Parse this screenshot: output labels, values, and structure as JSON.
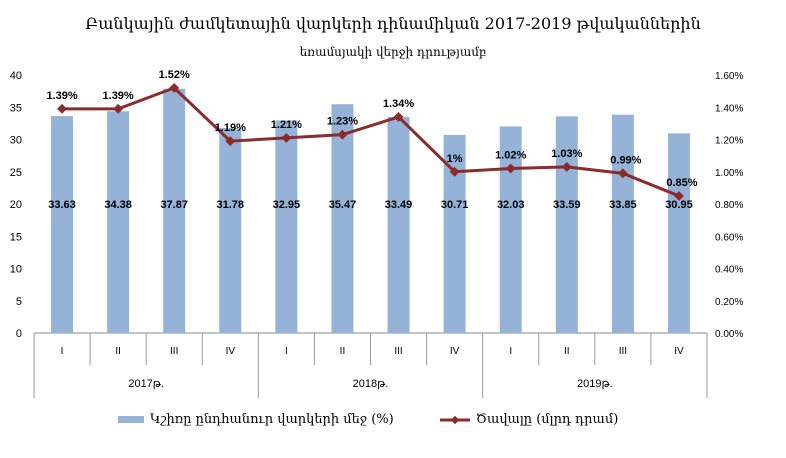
{
  "chart_data": {
    "type": "bar+line",
    "title": "Բանկային ժամկետային վարկերի դինամիկան 2017-2019 թվականներին",
    "subtitle": "եռամսյակի վերջի դրությամբ",
    "categories": [
      "I",
      "II",
      "III",
      "IV",
      "I",
      "II",
      "III",
      "IV",
      "I",
      "II",
      "III",
      "IV"
    ],
    "groups": [
      "2017թ.",
      "2018թ.",
      "2019թ."
    ],
    "y_left": {
      "range": [
        0,
        40
      ],
      "ticks": [
        "0",
        "5",
        "10",
        "15",
        "20",
        "25",
        "30",
        "35",
        "40"
      ]
    },
    "y_right": {
      "range": [
        0,
        1.6
      ],
      "ticks": [
        "0.00%",
        "0.20%",
        "0.40%",
        "0.60%",
        "0.80%",
        "1.00%",
        "1.20%",
        "1.40%",
        "1.60%"
      ]
    },
    "grid": false,
    "legend_position": "bottom",
    "series": [
      {
        "name": "Կշիռը ընդհանուր վարկերի մեջ (%)",
        "type": "bar",
        "axis": "left",
        "color": "#95b3d7",
        "values": [
          33.63,
          34.38,
          37.87,
          31.78,
          32.95,
          35.47,
          33.49,
          30.71,
          32.03,
          33.59,
          33.85,
          30.95
        ],
        "labels": [
          "33.63",
          "34.38",
          "37.87",
          "31.78",
          "32.95",
          "35.47",
          "33.49",
          "30.71",
          "32.03",
          "33.59",
          "33.85",
          "30.95"
        ]
      },
      {
        "name": "Ծավալը (մլրդ դրամ)",
        "type": "line",
        "axis": "right",
        "color": "#8b2c2c",
        "values": [
          1.39,
          1.39,
          1.52,
          1.19,
          1.21,
          1.23,
          1.34,
          1.0,
          1.02,
          1.03,
          0.99,
          0.85
        ],
        "labels": [
          "1.39%",
          "1.39%",
          "1.52%",
          "1.19%",
          "1.21%",
          "1.23%",
          "1.34%",
          "1%",
          "1.02%",
          "1.03%",
          "0.99%",
          "0.85%"
        ]
      }
    ]
  }
}
